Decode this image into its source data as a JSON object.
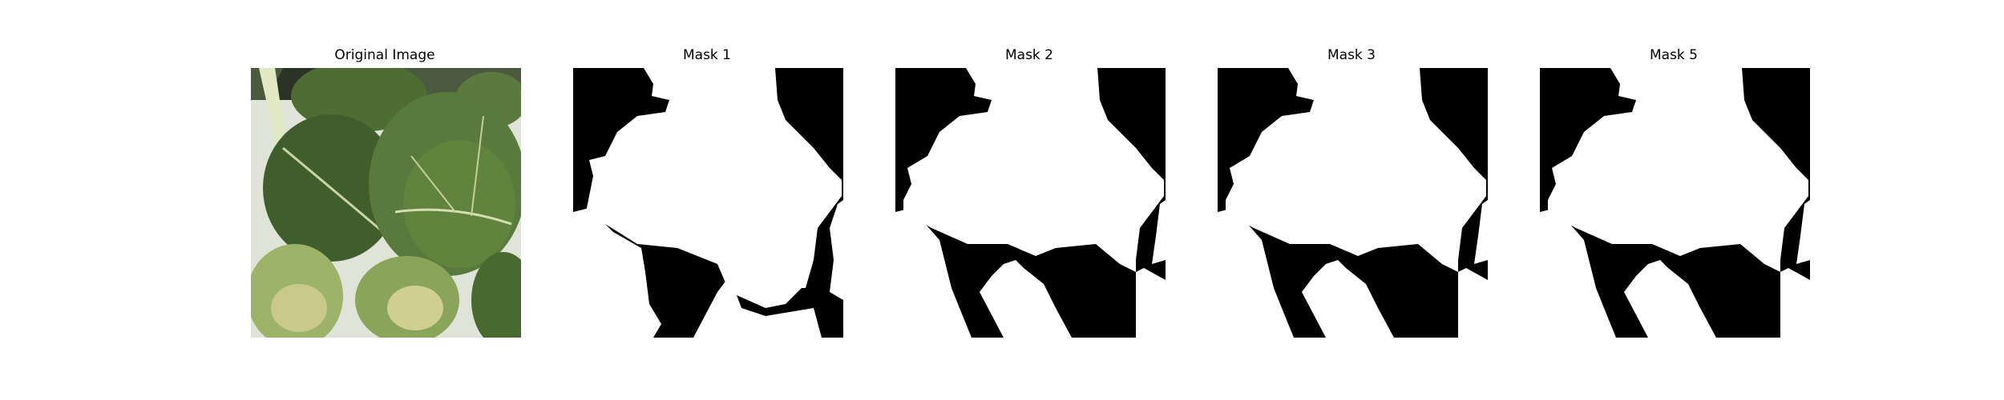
{
  "figure": {
    "panels": [
      {
        "title": "Original Image",
        "kind": "photo"
      },
      {
        "title": "Mask 1",
        "kind": "mask"
      },
      {
        "title": "Mask 2",
        "kind": "mask"
      },
      {
        "title": "Mask 3",
        "kind": "mask"
      },
      {
        "title": "Mask 5",
        "kind": "mask"
      }
    ]
  },
  "colors": {
    "mask_foreground": "#ffffff",
    "mask_background": "#000000",
    "leaf_dark": "#3e5b2a",
    "leaf_mid": "#587a3c",
    "leaf_light": "#9db36a",
    "stem": "#e2e8c4",
    "wall": "#dfe3d8"
  }
}
